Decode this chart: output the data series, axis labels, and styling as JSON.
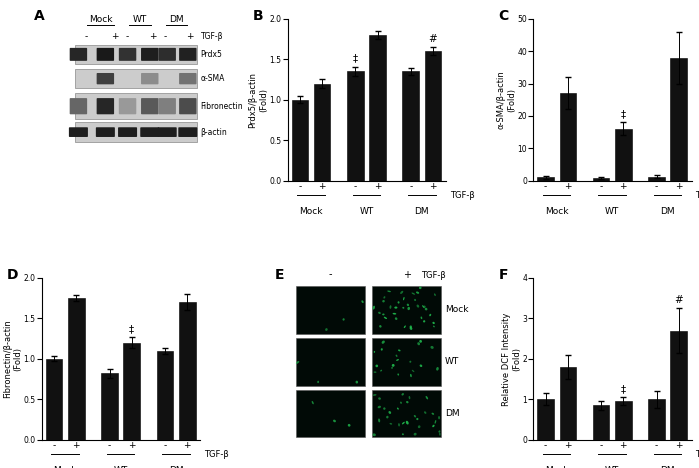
{
  "B_values": [
    1.0,
    1.2,
    1.35,
    1.8,
    1.35,
    1.6
  ],
  "B_errors": [
    0.04,
    0.05,
    0.06,
    0.05,
    0.04,
    0.05
  ],
  "B_ylabel": "Prdx5/β-actin\n(Fold)",
  "B_ylim": [
    0,
    2
  ],
  "B_yticks": [
    0,
    0.5,
    1,
    1.5,
    2
  ],
  "B_stars": [
    null,
    null,
    "‡",
    null,
    null,
    "#"
  ],
  "C_values": [
    1.0,
    27.0,
    0.8,
    16.0,
    1.2,
    38.0
  ],
  "C_errors": [
    0.5,
    5.0,
    0.4,
    2.0,
    0.5,
    8.0
  ],
  "C_ylabel": "α-SMA/β-actin\n(Fold)",
  "C_ylim": [
    0,
    50
  ],
  "C_yticks": [
    0,
    10,
    20,
    30,
    40,
    50
  ],
  "C_stars": [
    null,
    null,
    null,
    "‡",
    null,
    null
  ],
  "D_values": [
    1.0,
    1.75,
    0.82,
    1.2,
    1.1,
    1.7
  ],
  "D_errors": [
    0.03,
    0.04,
    0.05,
    0.07,
    0.04,
    0.1
  ],
  "D_ylabel": "Fibronectin/β-actin\n(Fold)",
  "D_ylim": [
    0,
    2
  ],
  "D_yticks": [
    0,
    0.5,
    1,
    1.5,
    2
  ],
  "D_stars": [
    null,
    null,
    null,
    "‡",
    null,
    null
  ],
  "F_values": [
    1.0,
    1.8,
    0.85,
    0.95,
    1.0,
    2.7
  ],
  "F_errors": [
    0.15,
    0.3,
    0.1,
    0.1,
    0.2,
    0.55
  ],
  "F_ylabel": "Relative DCF Intensity\n(Fold)",
  "F_ylim": [
    0,
    4
  ],
  "F_yticks": [
    0,
    1,
    2,
    3,
    4
  ],
  "F_stars": [
    null,
    null,
    null,
    "‡",
    null,
    "#"
  ],
  "groups": [
    "Mock",
    "WT",
    "DM"
  ],
  "bar_color": "#111111",
  "tgfb_label": "TGF-β",
  "x_tick_labels": [
    "-",
    "+",
    "-",
    "+",
    "-",
    "+"
  ],
  "A_blot_bg": "#d8d8d8",
  "A_band_colors": {
    "Prdx5": "#1a1a1a",
    "aSMA": "#2a2a2a",
    "Fibronectin": "#222222",
    "bactin": "#111111"
  }
}
